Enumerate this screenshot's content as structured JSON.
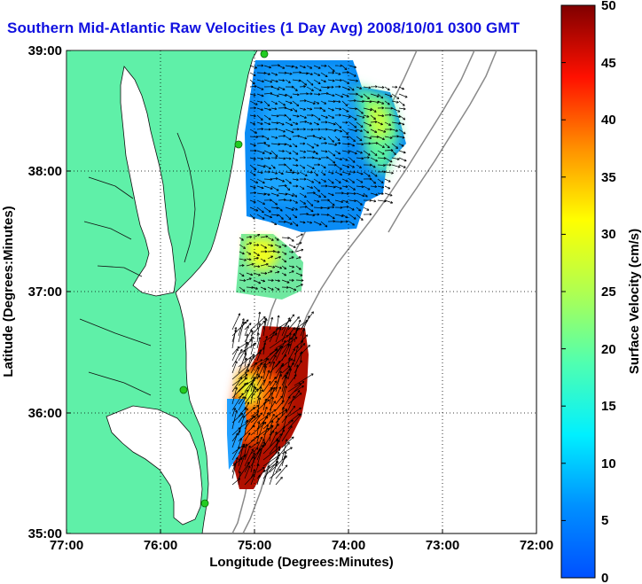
{
  "title": "Southern Mid-Atlantic Raw Velocities (1 Day Avg) 2008/10/01 0300 GMT",
  "x_axis": {
    "label": "Longitude (Degrees:Minutes)",
    "ticks": [
      "77:00",
      "76:00",
      "75:00",
      "74:00",
      "73:00",
      "72:00"
    ],
    "range": [
      -77,
      -72
    ]
  },
  "y_axis": {
    "label": "Latitude (Degrees:Minutes)",
    "ticks": [
      "39:00",
      "38:00",
      "37:00",
      "36:00",
      "35:00"
    ],
    "range": [
      35,
      39
    ]
  },
  "colorbar": {
    "label": "Surface Velocity (cm/s)",
    "ticks": [
      "50",
      "45",
      "40",
      "35",
      "30",
      "25",
      "20",
      "15",
      "10",
      "5",
      "0"
    ],
    "range": [
      0,
      50
    ]
  },
  "colors": {
    "land": "#5ff0a8",
    "title": "#1010e0",
    "station": "#22cc22"
  },
  "grid": "dotted",
  "legend_placement": "right"
}
